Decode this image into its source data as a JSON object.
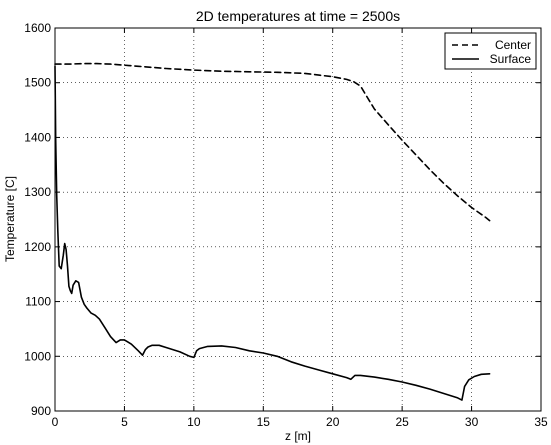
{
  "chart_data": {
    "type": "line",
    "title": "2D temperatures at time = 2500s",
    "xlabel": "z [m]",
    "ylabel": "Temperature [C]",
    "xlim": [
      0,
      35
    ],
    "ylim": [
      900,
      1600
    ],
    "xticks": [
      0,
      5,
      10,
      15,
      20,
      25,
      30,
      35
    ],
    "yticks": [
      900,
      1000,
      1100,
      1200,
      1300,
      1400,
      1500,
      1600
    ],
    "grid": true,
    "legend_position": "top-right",
    "series": [
      {
        "name": "Center",
        "style": "dashed",
        "color": "#000000",
        "x": [
          0,
          1,
          2,
          3,
          4,
          5,
          6,
          8,
          10,
          12,
          14,
          16,
          18,
          19,
          20,
          21,
          21.5,
          22,
          22.5,
          23,
          24,
          25,
          26,
          27,
          28,
          29,
          30,
          31,
          31.3
        ],
        "y": [
          1534,
          1534,
          1535,
          1535,
          1534,
          1532,
          1530,
          1526,
          1523,
          1521,
          1520,
          1519,
          1517,
          1514,
          1511,
          1506,
          1502,
          1494,
          1473,
          1452,
          1423,
          1395,
          1368,
          1341,
          1316,
          1293,
          1272,
          1254,
          1248
        ]
      },
      {
        "name": "Surface",
        "style": "solid",
        "color": "#000000",
        "x": [
          0,
          0.05,
          0.12,
          0.2,
          0.3,
          0.45,
          0.6,
          0.7,
          0.8,
          0.9,
          1.0,
          1.1,
          1.2,
          1.3,
          1.5,
          1.7,
          1.9,
          2.1,
          2.3,
          2.6,
          2.9,
          3.2,
          3.6,
          4.0,
          4.4,
          4.7,
          5.0,
          5.5,
          6.0,
          6.3,
          6.5,
          6.7,
          7.0,
          7.5,
          8.0,
          9.0,
          9.7,
          10.0,
          10.2,
          10.4,
          11.0,
          12.0,
          13.0,
          14.0,
          15.0,
          16.0,
          17.0,
          18.0,
          19.0,
          20.0,
          21.0,
          21.3,
          21.6,
          22.0,
          23.0,
          24.0,
          25.0,
          26.0,
          27.0,
          28.0,
          29.0,
          29.3,
          29.5,
          29.8,
          30.2,
          30.7,
          31.3
        ],
        "y": [
          1530,
          1395,
          1295,
          1230,
          1165,
          1160,
          1185,
          1206,
          1195,
          1165,
          1128,
          1120,
          1115,
          1130,
          1138,
          1135,
          1108,
          1095,
          1088,
          1079,
          1075,
          1068,
          1052,
          1036,
          1025,
          1030,
          1030,
          1022,
          1010,
          1002,
          1012,
          1017,
          1020,
          1020,
          1016,
          1008,
          1000,
          998,
          1010,
          1014,
          1018,
          1019,
          1016,
          1010,
          1006,
          1000,
          990,
          982,
          975,
          968,
          961,
          958,
          965,
          965,
          962,
          958,
          953,
          947,
          940,
          932,
          924,
          920,
          945,
          957,
          963,
          967,
          968
        ]
      }
    ]
  }
}
